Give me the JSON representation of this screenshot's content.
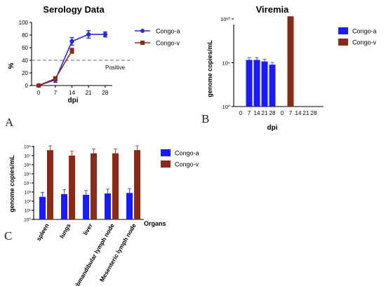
{
  "panels": {
    "a": "A",
    "b": "B",
    "c": "C"
  },
  "chart_data": [
    {
      "type": "line",
      "title": "Serology Data",
      "xlabel": "dpi",
      "ylabel": "%",
      "x": [
        0,
        7,
        14,
        21,
        28
      ],
      "x_ticks": [
        "0",
        "7",
        "14",
        "21",
        "28"
      ],
      "y_ticks": [
        "0",
        "20",
        "40",
        "60",
        "80",
        "100"
      ],
      "ylim": [
        0,
        100
      ],
      "threshold": {
        "value": 40,
        "label": "Positive"
      },
      "series": [
        {
          "name": "Congo-a",
          "color": "#2b2bd6",
          "marker": "circle",
          "values": [
            0,
            9,
            70,
            81,
            81
          ],
          "errors": [
            1,
            4,
            6,
            6,
            4
          ]
        },
        {
          "name": "Congo-v",
          "color": "#8b2a16",
          "marker": "square",
          "values": [
            0,
            11,
            55,
            null,
            null
          ],
          "errors": [
            1,
            3,
            4,
            0,
            0
          ]
        }
      ],
      "legend_position": "top-right"
    },
    {
      "type": "bar",
      "title": "Viremia",
      "xlabel": "dpi",
      "ylabel": "genome copies/mL",
      "scale": "log",
      "y_ticks": [
        "10⁰",
        "10⁵",
        "10¹⁰"
      ],
      "ylim": [
        1,
        100000000000.0
      ],
      "group_labels": [
        "0",
        "7",
        "14",
        "21",
        "28",
        "0",
        "7",
        "14",
        "21",
        "28"
      ],
      "series": [
        {
          "name": "Congo-a",
          "color": "#1a1aff",
          "x": [
            0,
            7,
            14,
            21,
            28
          ],
          "values": [
            1,
            210000.0,
            210000.0,
            140000.0,
            60000.0
          ]
        },
        {
          "name": "Congo-v",
          "color": "#8b2a16",
          "x": [
            0,
            7,
            14,
            21,
            28
          ],
          "values": [
            1,
            20000000000.0,
            1,
            1,
            1
          ]
        }
      ],
      "legend_position": "top-right"
    },
    {
      "type": "bar",
      "ylabel": "genome copies/mL",
      "xlabel": "Organs",
      "scale": "log",
      "y_ticks": [
        "10⁰",
        "10¹",
        "10²",
        "10³",
        "10⁴",
        "10⁵",
        "10⁶",
        "10⁷",
        "10⁸"
      ],
      "ylim": [
        1,
        100000000.0
      ],
      "categories": [
        "spleen",
        "lungs",
        "liver",
        "Submandibular lymph node",
        "Mesenteric lymph node"
      ],
      "series": [
        {
          "name": "Congo-a",
          "color": "#1a1aff",
          "values": [
            300,
            600,
            500,
            700,
            800
          ]
        },
        {
          "name": "Congo-v",
          "color": "#8b2a16",
          "values": [
            40000000.0,
            10000000.0,
            18000000.0,
            18000000.0,
            40000000.0
          ]
        }
      ],
      "legend_position": "top-right"
    }
  ]
}
